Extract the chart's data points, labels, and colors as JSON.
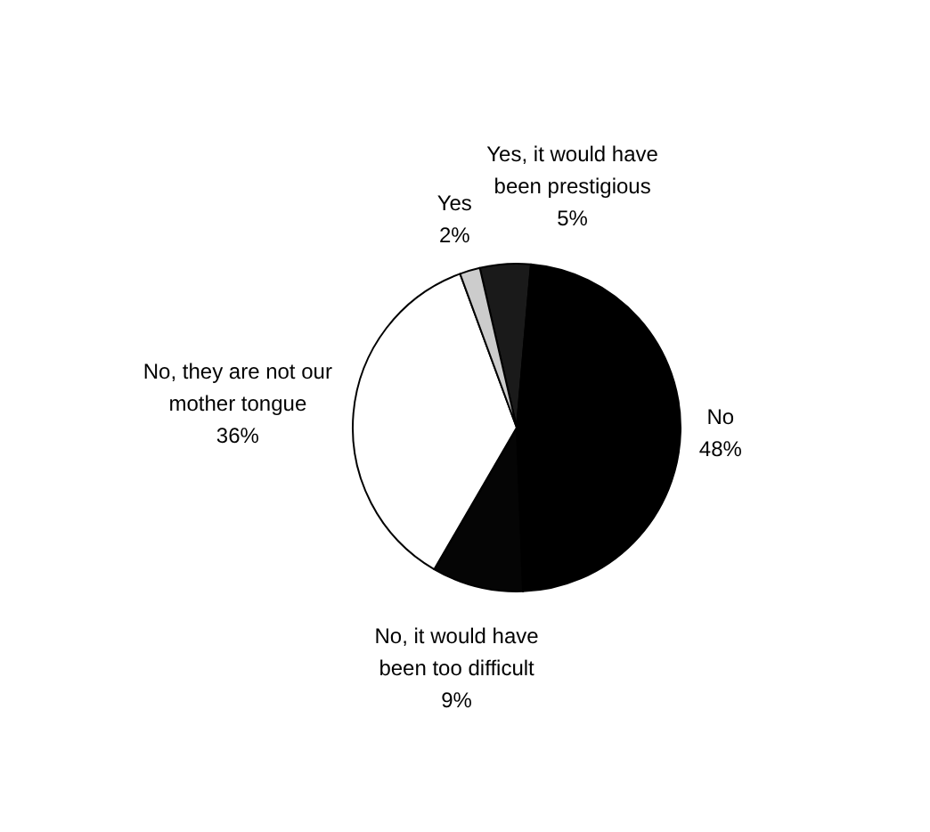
{
  "chart_data": {
    "type": "pie",
    "categories": [
      "Yes, it would have been prestigious",
      "No",
      "No, it would have been too difficult",
      "No, they are not our mother tongue",
      "Yes"
    ],
    "values": [
      5,
      48,
      9,
      36,
      2
    ],
    "colors": [
      "#1a1a1a",
      "#000000",
      "#050505",
      "#ffffff",
      "#cccccc"
    ],
    "value_labels": [
      "5%",
      "48%",
      "9%",
      "36%",
      "2%"
    ]
  }
}
